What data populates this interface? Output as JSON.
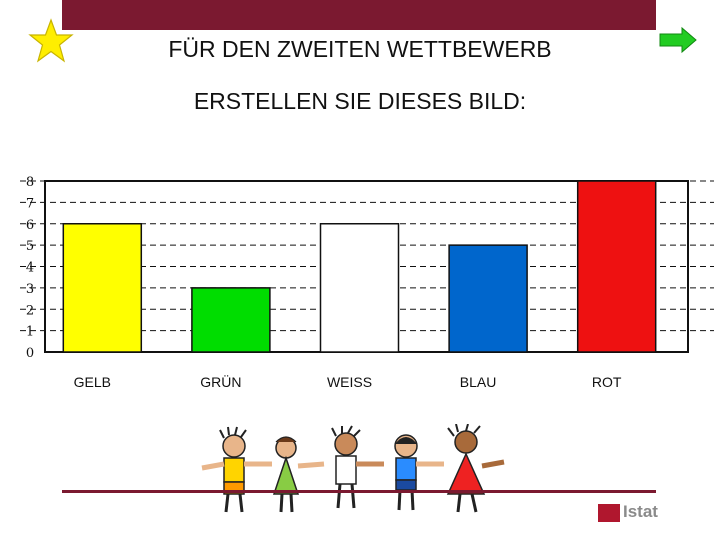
{
  "header": {
    "line1": "FÜR DEN ZWEITEN WETTBEWERB",
    "line2": "ERSTELLEN SIE DIESES BILD:"
  },
  "icons": {
    "star": "star-icon",
    "arrow": "arrow-right-icon",
    "illustration": "children-holding-hands-illustration"
  },
  "logo": {
    "text": "Istat"
  },
  "colors": {
    "topbar": "#7b1930",
    "gelb": "#ffff00",
    "gruen": "#00dd00",
    "weiss": "#ffffff",
    "blau": "#0066cc",
    "rot": "#ee1111"
  },
  "chart_data": {
    "type": "bar",
    "categories": [
      "GELB",
      "GRÜN",
      "WEISS",
      "BLAU",
      "ROT"
    ],
    "values": [
      6,
      3,
      6,
      5,
      8
    ],
    "colors": [
      "#ffff00",
      "#00dd00",
      "#ffffff",
      "#0066cc",
      "#ee1111"
    ],
    "ylim": [
      0,
      8
    ],
    "yticks": [
      0,
      1,
      2,
      3,
      4,
      5,
      6,
      7,
      8
    ],
    "grid": "dashed horizontal",
    "legend": "none"
  }
}
